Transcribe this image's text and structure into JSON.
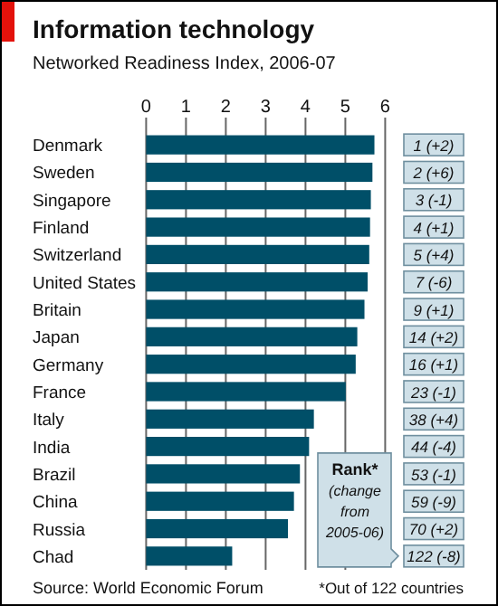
{
  "chart_data": {
    "type": "bar",
    "orientation": "horizontal",
    "title": "Information technology",
    "subtitle": "Networked Readiness Index, 2006-07",
    "categories": [
      "Denmark",
      "Sweden",
      "Singapore",
      "Finland",
      "Switzerland",
      "United States",
      "Britain",
      "Japan",
      "Germany",
      "France",
      "Italy",
      "India",
      "Brazil",
      "China",
      "Russia",
      "Chad"
    ],
    "values": [
      5.73,
      5.68,
      5.64,
      5.62,
      5.6,
      5.56,
      5.48,
      5.3,
      5.26,
      5.01,
      4.21,
      4.09,
      3.86,
      3.71,
      3.56,
      2.16
    ],
    "color": "#004f68",
    "xlim": [
      0,
      6
    ],
    "xticks": [
      0,
      1,
      2,
      3,
      4,
      5,
      6
    ],
    "grid": "x",
    "annotations": [
      "1 (+2)",
      "2 (+6)",
      "3 (-1)",
      "4 (+1)",
      "5 (+4)",
      "7 (-6)",
      "9 (+1)",
      "14 (+2)",
      "16 (+1)",
      "23 (-1)",
      "38 (+4)",
      "44 (-4)",
      "53 (-1)",
      "59 (-9)",
      "70 (+2)",
      "122 (-8)",
      "Rank* (change from 2005-06)",
      "Source: World Economic Forum",
      "*Out of 122 countries"
    ]
  }
}
